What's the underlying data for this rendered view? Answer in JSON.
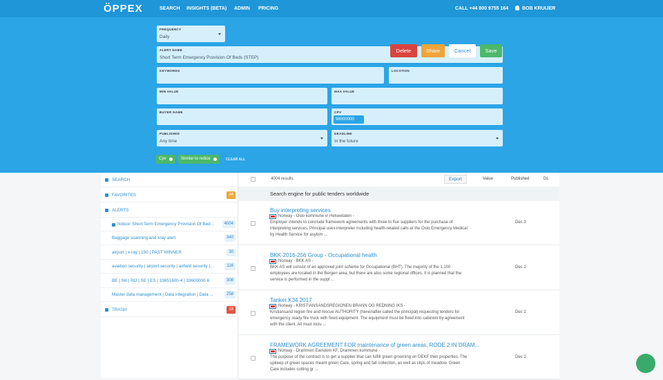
{
  "header": {
    "logo": "ÖPPEX",
    "nav": [
      "SEARCH",
      "INSIGHTS (BETA)",
      "ADMIN",
      "PRICING"
    ],
    "phone": "CALL +44 800 9755 164",
    "user": "BOB KRUIJER"
  },
  "form": {
    "frequency": {
      "label": "FREQUENCY",
      "value": "Daily"
    },
    "buttons": [
      "Delete",
      "Share",
      "Cancel",
      "Save"
    ],
    "alert_name": {
      "label": "ALERT NAME",
      "value": "Short Term Emergency Provision Of Beds (STEP)"
    },
    "keywords": {
      "label": "KEYWORDS"
    },
    "location": {
      "label": "LOCATION"
    },
    "min_value": {
      "label": "MIN VALUE"
    },
    "max_value": {
      "label": "MAX VALUE"
    },
    "buyer_name": {
      "label": "BUYER NAME"
    },
    "cpv": {
      "label": "CPV",
      "chip": "98000000"
    },
    "published": {
      "label": "PUBLISHED",
      "value": "Any time"
    },
    "deadline": {
      "label": "DEADLINE",
      "value": "In the future"
    },
    "filters": [
      "Cpv",
      "Similar to notice"
    ],
    "clear_all": "CLEAR ALL"
  },
  "sidebar": {
    "search": "SEARCH",
    "favorites": {
      "label": "FAVORITES",
      "count": 34
    },
    "alerts": "ALERTS",
    "alert_items": [
      {
        "label": "Notice: Short Term Emergency Provision Of Bed...",
        "count": 4004
      },
      {
        "label": "Baggage scanning and xray alert",
        "count": 340
      },
      {
        "label": "airport | x-ray | 150 | PAST WINNER",
        "count": 30
      },
      {
        "label": "aviation security | airport security | airfield security |...",
        "count": 116
      },
      {
        "label": "BE | SK | RO | SE | ES | 33651600-4 | 33600000-6",
        "count": 308
      },
      {
        "label": "Master data management | Data integration | Data ...",
        "count": 258
      }
    ],
    "trash": {
      "label": "TRASH",
      "count": 18
    }
  },
  "results": {
    "count": "4004 results",
    "export": "Export",
    "columns": [
      "Value",
      "Published",
      "DL"
    ],
    "banner": "Search engine for public tenders worldwide",
    "items": [
      {
        "title": "Buy interpreting services",
        "meta": "Norway - Oslo kommune v/ Helseetaten -",
        "text": "Employer intends to conclude framework agreements with three to five suppliers for the purchase of interpreting services. Principal uses interpreter including health-related calls at the Oslo Emergency Medical by Health Service for asylum ...",
        "date": "Dec 3"
      },
      {
        "title": "BKK-2016-256 Group - Occupational health",
        "meta": "Norway - BKK AS -",
        "text": "BKK AS will consist of an approved joint scheme for Occupational (BHT). The majority of the 1,100 employees are located in the Bergen area, but there are also some regional offices. It is planned that the service is performed in the suppl ...",
        "date": "Dec 2"
      },
      {
        "title": "Tanker K34 2017",
        "meta": "Norway - KRISTIANSANDSREGIONEN BRANN OG REDNING IKS -",
        "text": "Kristiansand region fire and rescue AUTHORITY (hereinafter called the principal) requesting tenders for emergency ready fire truck with fixed equipment. The equipment must be fixed into cabinets by agreement with the client. All must inclu ...",
        "date": "Dec 2"
      },
      {
        "title": "FRAMEWORK AGREEMENT FOR maintenance of green areas, RODE 2 IN DRAM...",
        "meta": "Norway - Drammen Eiendom KF, Drammen kommune -",
        "text": "The purpose of the contract is to get a supplier that can fulfill green grooming on DEKF their properties. The upkeep of green spaces meant green Care, spring and fall collection, as well as clips of meadow. Green Care includes cutting gr ...",
        "date": "Dec 2"
      }
    ]
  }
}
